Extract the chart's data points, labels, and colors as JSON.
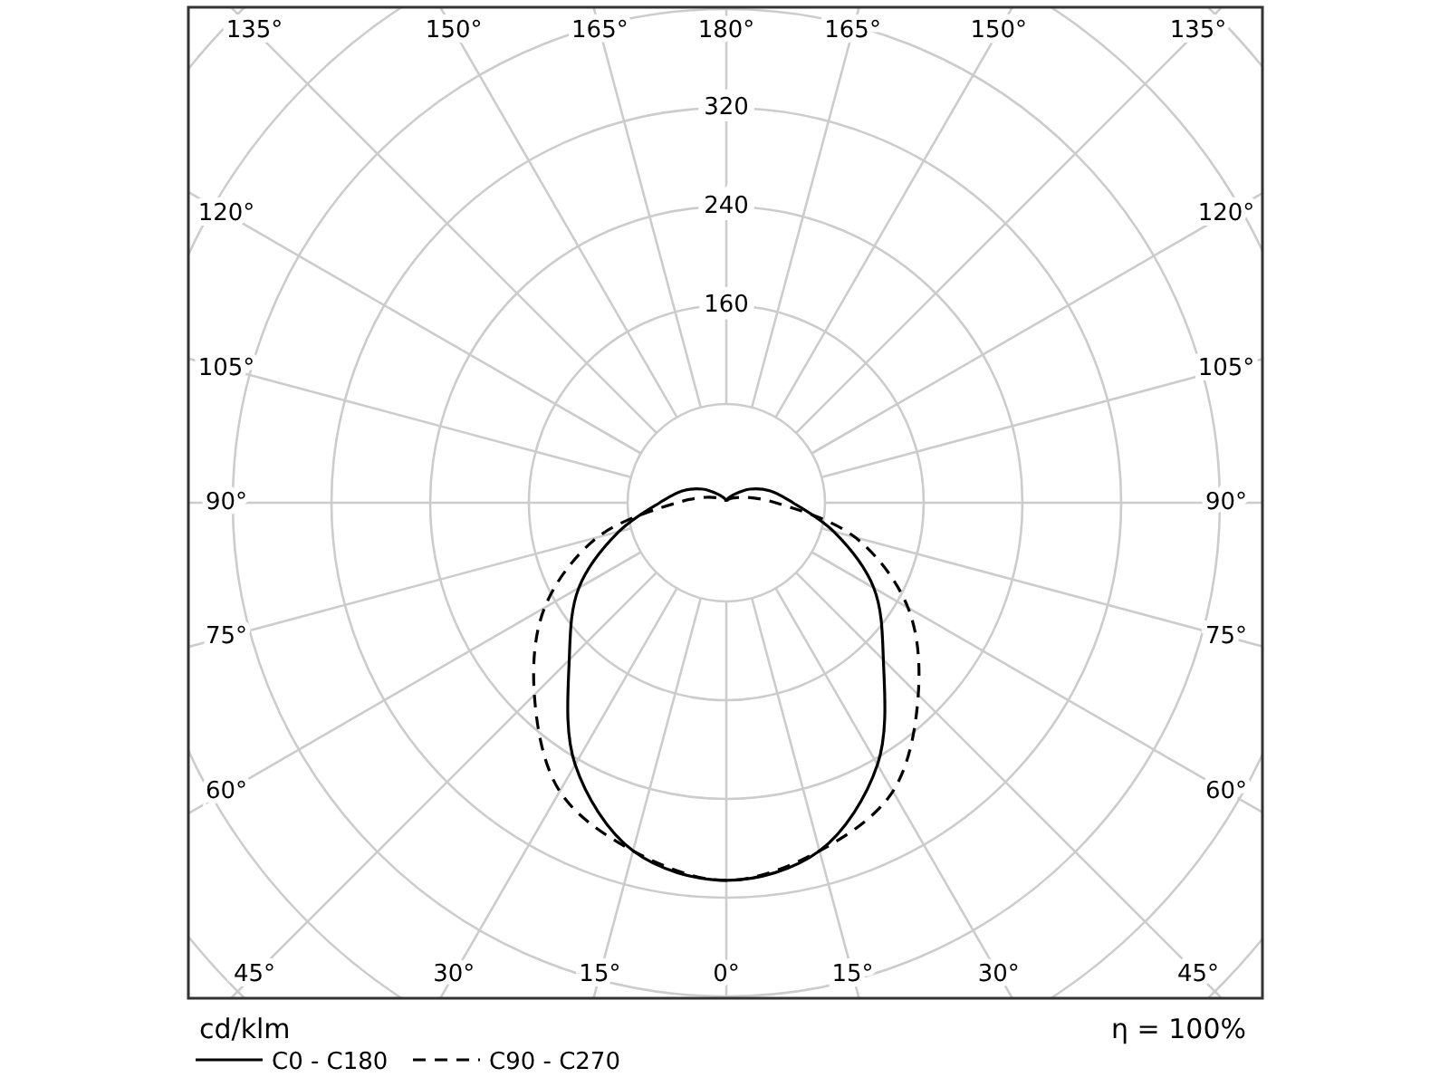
{
  "chart_data": {
    "type": "radar",
    "ylabel": "cd/klm",
    "annotations": [
      "η = 100%"
    ],
    "categories": [
      "180°",
      "165°",
      "150°",
      "135°",
      "120°",
      "105°",
      "90°",
      "75°",
      "60°",
      "45°",
      "30°",
      "15°",
      "0°",
      "15°",
      "30°",
      "45°",
      "60°",
      "75°",
      "90°",
      "105°",
      "120°",
      "135°",
      "150°",
      "165°"
    ],
    "series": [
      {
        "name": "C0 - C180",
        "color": "#000000",
        "line_style": "solid",
        "values": [
          2,
          3,
          5,
          10,
          22,
          37,
          54,
          90,
          138,
          180,
          245,
          292,
          306,
          292,
          245,
          180,
          138,
          90,
          54,
          37,
          22,
          10,
          5,
          3
        ]
      },
      {
        "name": "C90 - C270",
        "color": "#000000",
        "line_style": "dashed",
        "values": [
          2,
          2,
          3,
          5,
          8,
          17,
          40,
          108,
          170,
          220,
          270,
          292,
          306,
          292,
          270,
          220,
          170,
          108,
          40,
          17,
          8,
          5,
          3,
          2
        ]
      }
    ],
    "ylim": [
      0,
      560
    ],
    "yticks": [
      160,
      240,
      320
    ],
    "grid": true,
    "legend": "bottom left"
  }
}
